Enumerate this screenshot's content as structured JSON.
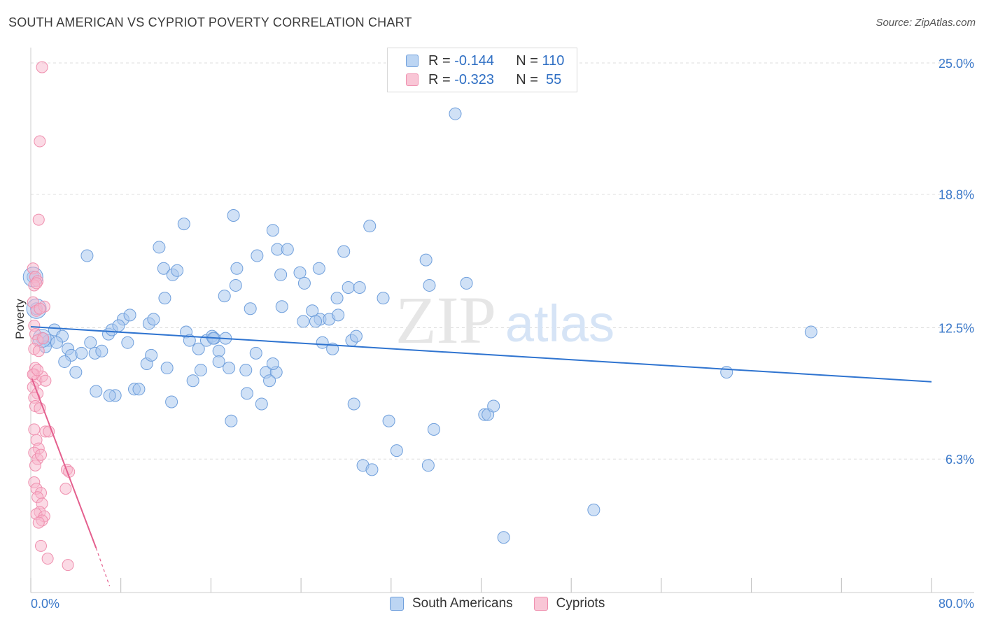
{
  "title": "SOUTH AMERICAN VS CYPRIOT POVERTY CORRELATION CHART",
  "source": "Source: ZipAtlas.com",
  "watermark": {
    "zip": "ZIP",
    "atlas": "atlas"
  },
  "colors": {
    "blue_fill": "#a9c8ef",
    "blue_stroke": "#6f9fdc",
    "blue_line": "#2f74d0",
    "pink_fill": "#f7b6cb",
    "pink_stroke": "#ef8fae",
    "pink_line": "#e45f8e",
    "axis_label": "#3a78c9",
    "grid": "#dddddd"
  },
  "legend": {
    "rows": [
      {
        "r_label": "R = ",
        "r_value": "-0.144",
        "n_label": "N = ",
        "n_value": "110"
      },
      {
        "r_label": "R = ",
        "r_value": "-0.323",
        "n_label": "N = ",
        "n_value": " 55"
      }
    ]
  },
  "bottom_legend": [
    "South Americans",
    "Cypriots"
  ],
  "chart_data": {
    "type": "scatter",
    "title": "SOUTH AMERICAN VS CYPRIOT POVERTY CORRELATION CHART",
    "xlabel": "",
    "ylabel": "Poverty",
    "xlim": [
      0,
      80
    ],
    "ylim": [
      0,
      25
    ],
    "x_tick_labels": [
      "0.0%",
      "80.0%"
    ],
    "y_ticks": [
      6.3,
      12.5,
      18.8,
      25.0
    ],
    "y_tick_labels": [
      "6.3%",
      "12.5%",
      "18.8%",
      "25.0%"
    ],
    "series": [
      {
        "name": "South Americans",
        "r": -0.144,
        "n": 110,
        "trend": {
          "x": [
            0,
            80
          ],
          "y": [
            12.55,
            9.95
          ]
        },
        "points": [
          [
            0.2,
            14.9
          ],
          [
            0.5,
            13.4
          ],
          [
            1.0,
            12.0
          ],
          [
            1.6,
            11.9
          ],
          [
            1.3,
            11.6
          ],
          [
            2.1,
            12.4
          ],
          [
            2.8,
            12.1
          ],
          [
            2.3,
            11.8
          ],
          [
            3.3,
            11.5
          ],
          [
            3.6,
            11.2
          ],
          [
            4.5,
            11.3
          ],
          [
            3.0,
            10.9
          ],
          [
            5.3,
            11.8
          ],
          [
            5.7,
            11.3
          ],
          [
            4.0,
            10.4
          ],
          [
            6.3,
            11.4
          ],
          [
            6.9,
            12.2
          ],
          [
            7.2,
            12.4
          ],
          [
            8.2,
            12.9
          ],
          [
            8.8,
            13.1
          ],
          [
            7.8,
            12.6
          ],
          [
            8.6,
            11.8
          ],
          [
            5.0,
            15.9
          ],
          [
            11.4,
            16.3
          ],
          [
            11.8,
            15.3
          ],
          [
            12.6,
            15.0
          ],
          [
            13.0,
            15.2
          ],
          [
            11.9,
            13.9
          ],
          [
            13.6,
            17.4
          ],
          [
            10.5,
            12.7
          ],
          [
            10.9,
            12.9
          ],
          [
            10.3,
            10.8
          ],
          [
            10.7,
            11.2
          ],
          [
            9.2,
            9.6
          ],
          [
            9.6,
            9.6
          ],
          [
            7.5,
            9.3
          ],
          [
            7.0,
            9.3
          ],
          [
            5.8,
            9.5
          ],
          [
            12.1,
            10.6
          ],
          [
            12.5,
            9.0
          ],
          [
            13.8,
            12.3
          ],
          [
            14.1,
            11.9
          ],
          [
            14.9,
            11.5
          ],
          [
            14.4,
            10.0
          ],
          [
            15.1,
            10.5
          ],
          [
            15.6,
            11.9
          ],
          [
            16.1,
            12.1
          ],
          [
            16.7,
            11.4
          ],
          [
            16.3,
            12.0
          ],
          [
            16.7,
            10.9
          ],
          [
            17.3,
            12.0
          ],
          [
            17.6,
            10.6
          ],
          [
            16.2,
            12.0
          ],
          [
            18.2,
            14.5
          ],
          [
            17.2,
            14.0
          ],
          [
            17.8,
            8.1
          ],
          [
            18.0,
            17.8
          ],
          [
            18.3,
            15.3
          ],
          [
            19.1,
            10.5
          ],
          [
            19.2,
            9.4
          ],
          [
            19.5,
            13.4
          ],
          [
            20.0,
            11.3
          ],
          [
            20.5,
            8.9
          ],
          [
            20.1,
            15.9
          ],
          [
            20.9,
            10.4
          ],
          [
            21.5,
            17.1
          ],
          [
            21.9,
            16.2
          ],
          [
            21.8,
            10.4
          ],
          [
            21.2,
            10.0
          ],
          [
            21.5,
            10.8
          ],
          [
            22.3,
            13.5
          ],
          [
            22.2,
            15.0
          ],
          [
            22.8,
            16.2
          ],
          [
            23.9,
            15.1
          ],
          [
            24.3,
            14.6
          ],
          [
            24.2,
            12.8
          ],
          [
            25.6,
            15.3
          ],
          [
            25.0,
            13.3
          ],
          [
            25.7,
            12.9
          ],
          [
            25.3,
            12.8
          ],
          [
            25.9,
            11.8
          ],
          [
            26.5,
            12.9
          ],
          [
            27.2,
            13.9
          ],
          [
            27.3,
            13.1
          ],
          [
            27.8,
            16.1
          ],
          [
            28.2,
            14.4
          ],
          [
            26.8,
            11.5
          ],
          [
            28.5,
            11.9
          ],
          [
            28.9,
            12.1
          ],
          [
            28.7,
            8.9
          ],
          [
            29.2,
            14.4
          ],
          [
            30.1,
            17.3
          ],
          [
            29.5,
            6.0
          ],
          [
            30.3,
            5.8
          ],
          [
            31.3,
            13.9
          ],
          [
            31.8,
            8.1
          ],
          [
            32.5,
            6.7
          ],
          [
            35.1,
            15.7
          ],
          [
            35.8,
            7.7
          ],
          [
            35.3,
            6.0
          ],
          [
            35.4,
            14.5
          ],
          [
            37.7,
            22.6
          ],
          [
            38.7,
            14.6
          ],
          [
            40.3,
            8.4
          ],
          [
            40.6,
            8.4
          ],
          [
            41.1,
            8.8
          ],
          [
            42.0,
            2.6
          ],
          [
            50.0,
            3.9
          ],
          [
            61.8,
            10.4
          ],
          [
            69.3,
            12.3
          ]
        ]
      },
      {
        "name": "Cypriots",
        "r": -0.323,
        "n": 55,
        "trend": {
          "x": [
            0.1,
            5.8
          ],
          "y": [
            10.1,
            2.1
          ]
        },
        "trend_dashed": {
          "x": [
            5.8,
            7.0
          ],
          "y": [
            2.1,
            0.3
          ]
        },
        "points": [
          [
            1.0,
            24.8
          ],
          [
            0.8,
            21.3
          ],
          [
            0.7,
            17.6
          ],
          [
            0.2,
            15.3
          ],
          [
            0.4,
            14.9
          ],
          [
            0.6,
            14.7
          ],
          [
            0.3,
            14.5
          ],
          [
            0.2,
            13.7
          ],
          [
            0.5,
            13.3
          ],
          [
            1.2,
            13.5
          ],
          [
            0.3,
            12.6
          ],
          [
            0.4,
            12.2
          ],
          [
            0.6,
            11.9
          ],
          [
            0.3,
            11.5
          ],
          [
            0.7,
            11.4
          ],
          [
            0.4,
            10.6
          ],
          [
            0.3,
            10.3
          ],
          [
            0.5,
            10.0
          ],
          [
            1.0,
            10.2
          ],
          [
            1.3,
            10.0
          ],
          [
            0.2,
            9.7
          ],
          [
            0.6,
            9.4
          ],
          [
            0.3,
            9.2
          ],
          [
            0.4,
            8.8
          ],
          [
            0.8,
            8.7
          ],
          [
            0.3,
            7.7
          ],
          [
            1.3,
            7.6
          ],
          [
            1.6,
            7.6
          ],
          [
            0.5,
            7.2
          ],
          [
            0.7,
            6.8
          ],
          [
            0.3,
            6.6
          ],
          [
            0.6,
            6.3
          ],
          [
            0.9,
            6.5
          ],
          [
            0.4,
            6.0
          ],
          [
            3.2,
            5.8
          ],
          [
            3.4,
            5.7
          ],
          [
            0.3,
            5.2
          ],
          [
            0.5,
            4.9
          ],
          [
            0.9,
            4.7
          ],
          [
            3.1,
            4.9
          ],
          [
            0.6,
            4.5
          ],
          [
            1.0,
            4.2
          ],
          [
            0.8,
            3.8
          ],
          [
            0.5,
            3.7
          ],
          [
            1.2,
            3.6
          ],
          [
            1.0,
            3.4
          ],
          [
            0.7,
            3.3
          ],
          [
            0.9,
            2.2
          ],
          [
            1.5,
            1.6
          ],
          [
            3.3,
            1.3
          ],
          [
            1.1,
            12.0
          ],
          [
            0.5,
            14.6
          ],
          [
            0.8,
            13.4
          ],
          [
            0.2,
            10.3
          ],
          [
            0.6,
            10.5
          ]
        ]
      }
    ]
  }
}
